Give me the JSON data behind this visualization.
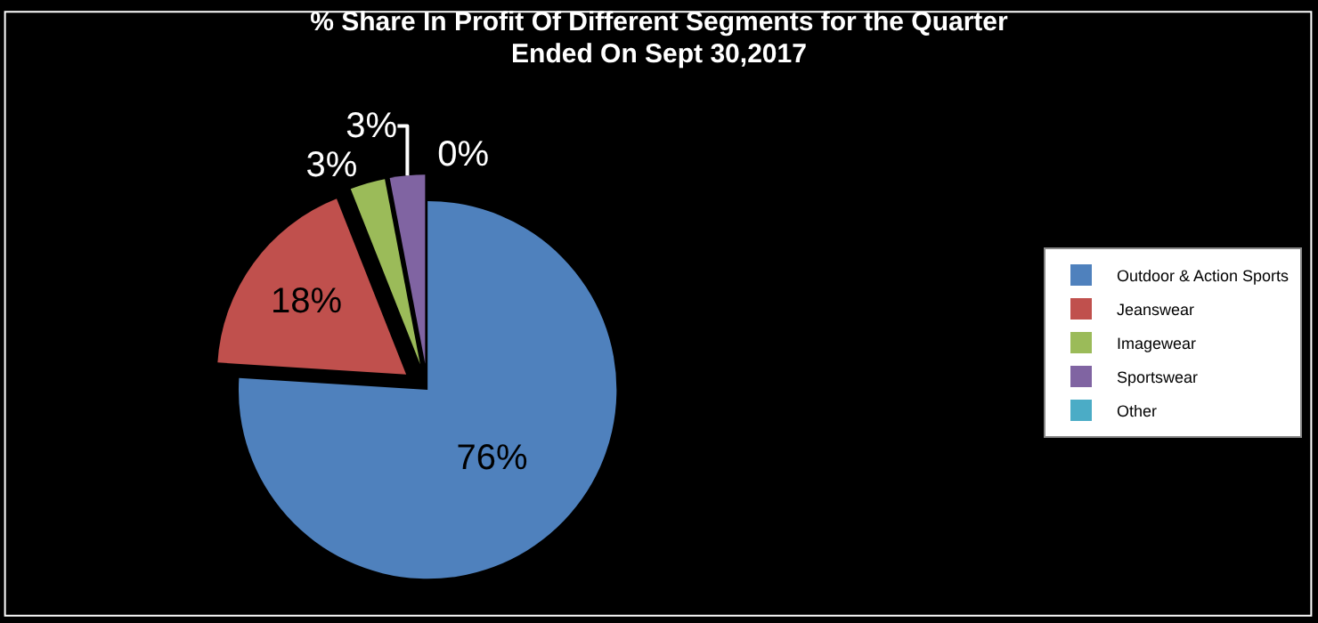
{
  "chart_data": {
    "type": "pie",
    "title": "% Share In Profit Of Different Segments for the Quarter Ended On Sept 30,2017",
    "categories": [
      "Outdoor & Action Sports",
      "Jeanswear",
      "Imagewear",
      "Sportswear",
      "Other"
    ],
    "values": [
      76,
      18,
      3,
      3,
      0
    ],
    "value_labels": [
      "76%",
      "18%",
      "3%",
      "3%",
      "0%"
    ],
    "colors": [
      "#4f81bd",
      "#c0504d",
      "#9bbb59",
      "#8064a2",
      "#4bacc6"
    ],
    "legend": "right"
  }
}
